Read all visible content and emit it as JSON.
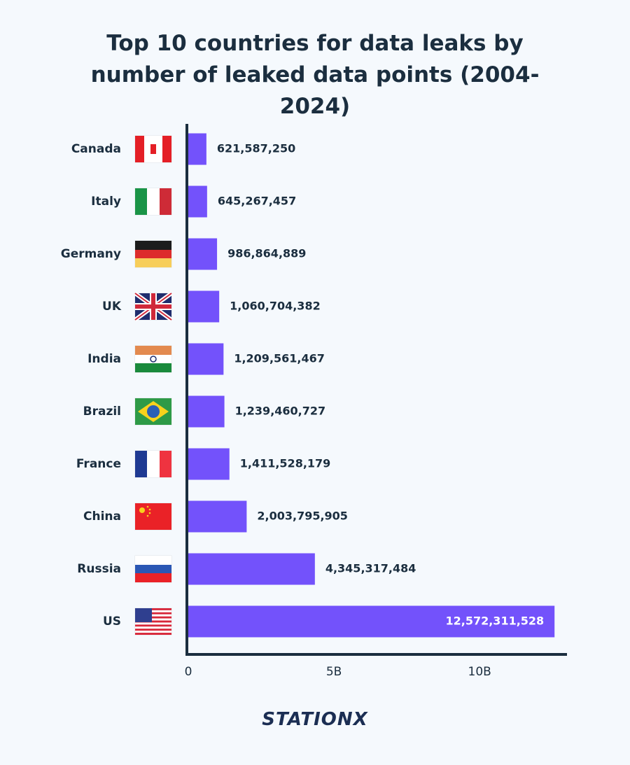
{
  "chart_data": {
    "type": "bar",
    "orientation": "horizontal",
    "title": "Top 10 countries for data leaks by number of leaked data points (2004-2024)",
    "categories": [
      "Canada",
      "Italy",
      "Germany",
      "UK",
      "India",
      "Brazil",
      "France",
      "China",
      "Russia",
      "US"
    ],
    "values": [
      621587250,
      645267457,
      986864889,
      1060704382,
      1209561467,
      1239460727,
      1411528179,
      2003795905,
      4345317484,
      12572311528
    ],
    "value_labels": [
      "621,587,250",
      "645,267,457",
      "986,864,889",
      "1,060,704,382",
      "1,209,561,467",
      "1,239,460,727",
      "1,411,528,179",
      "2,003,795,905",
      "4,345,317,484",
      "12,572,311,528"
    ],
    "color": "#7352fb",
    "xlim": [
      0,
      13000000000
    ],
    "xticks": [
      0,
      {
        "value": 5000000000,
        "label": "5B"
      },
      {
        "value": 10000000000,
        "label": "10B"
      }
    ]
  },
  "logo": "STATIONX"
}
